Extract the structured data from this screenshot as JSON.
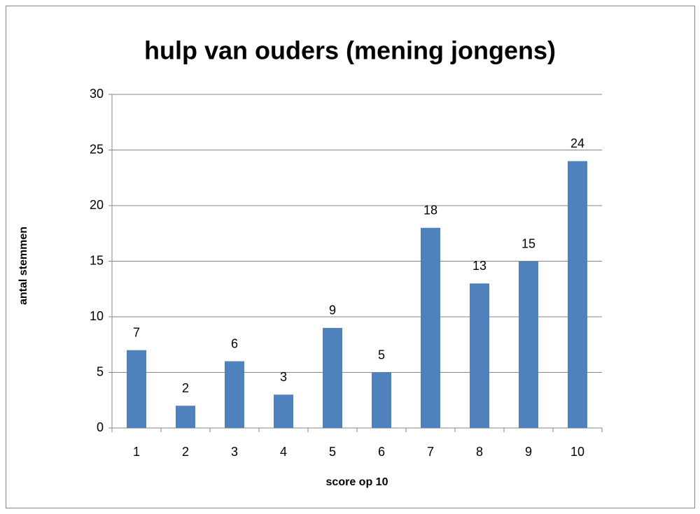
{
  "chart_data": {
    "type": "bar",
    "title": "hulp van ouders (mening jongens)",
    "categories": [
      "1",
      "2",
      "3",
      "4",
      "5",
      "6",
      "7",
      "8",
      "9",
      "10"
    ],
    "values": [
      7,
      2,
      6,
      3,
      9,
      5,
      18,
      13,
      15,
      24
    ],
    "color": "#4f81bd",
    "xlabel": "score op 10",
    "ylabel": "antal stemmen",
    "ylim": [
      0,
      30
    ],
    "yticks": [
      0,
      5,
      10,
      15,
      20,
      25,
      30
    ],
    "grid": true
  }
}
